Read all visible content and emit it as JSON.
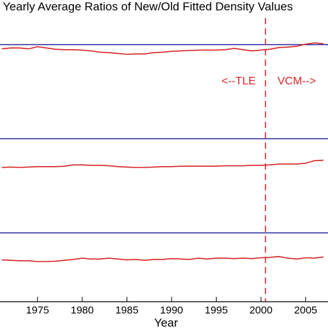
{
  "chart_data": {
    "type": "line",
    "title": "Yearly Average Ratios of New/Old Fitted Density Values",
    "xlabel": "Year",
    "xlim": [
      1970.8,
      2007.5
    ],
    "xticks": [
      1975,
      1980,
      1985,
      1990,
      1995,
      2000,
      2005
    ],
    "grid": false,
    "colors": {
      "series": "#d62728",
      "reference": "#2a2aa0",
      "divider": "#d62728"
    },
    "divider_year": 2000.5,
    "annotations": [
      {
        "text": "<--TLE",
        "x": 1997.5
      },
      {
        "text": "VCM-->",
        "x": 2004.0
      }
    ],
    "panels": [
      {
        "name": "panel-1",
        "ylim": [
          0.86,
          1.04
        ],
        "reference": 1.0,
        "series": {
          "x": [
            1971,
            1972,
            1973,
            1974,
            1975,
            1976,
            1977,
            1978,
            1979,
            1980,
            1981,
            1982,
            1983,
            1984,
            1985,
            1986,
            1987,
            1988,
            1989,
            1990,
            1991,
            1992,
            1993,
            1994,
            1995,
            1996,
            1997,
            1998,
            1999,
            2000,
            2001,
            2002,
            2003,
            2004,
            2005,
            2006,
            2007
          ],
          "values": [
            0.99,
            0.992,
            0.992,
            0.99,
            0.995,
            0.992,
            0.989,
            0.988,
            0.988,
            0.987,
            0.985,
            0.982,
            0.981,
            0.979,
            0.977,
            0.978,
            0.978,
            0.981,
            0.982,
            0.984,
            0.985,
            0.986,
            0.987,
            0.987,
            0.987,
            0.988,
            0.991,
            0.988,
            0.985,
            0.987,
            0.989,
            0.993,
            0.994,
            0.996,
            1.001,
            1.004,
            1.002
          ]
        }
      },
      {
        "name": "panel-2",
        "ylim": [
          0.86,
          1.04
        ],
        "reference": 1.0,
        "series": {
          "x": [
            1971,
            1972,
            1973,
            1974,
            1975,
            1976,
            1977,
            1978,
            1979,
            1980,
            1981,
            1982,
            1983,
            1984,
            1985,
            1986,
            1987,
            1988,
            1989,
            1990,
            1991,
            1992,
            1993,
            1994,
            1995,
            1996,
            1997,
            1998,
            1999,
            2000,
            2001,
            2002,
            2003,
            2004,
            2005,
            2006,
            2007
          ],
          "values": [
            0.932,
            0.933,
            0.932,
            0.933,
            0.934,
            0.934,
            0.934,
            0.935,
            0.938,
            0.938,
            0.937,
            0.937,
            0.936,
            0.934,
            0.933,
            0.932,
            0.932,
            0.933,
            0.934,
            0.934,
            0.935,
            0.935,
            0.935,
            0.935,
            0.935,
            0.936,
            0.936,
            0.936,
            0.937,
            0.937,
            0.938,
            0.94,
            0.94,
            0.94,
            0.942,
            0.948,
            0.949
          ]
        }
      },
      {
        "name": "panel-3",
        "ylim": [
          0.86,
          1.04
        ],
        "reference": 1.0,
        "series": {
          "x": [
            1971,
            1972,
            1973,
            1974,
            1975,
            1976,
            1977,
            1978,
            1979,
            1980,
            1981,
            1982,
            1983,
            1984,
            1985,
            1986,
            1987,
            1988,
            1989,
            1990,
            1991,
            1992,
            1993,
            1994,
            1995,
            1996,
            1997,
            1998,
            1999,
            2000,
            2001,
            2002,
            2003,
            2004,
            2005,
            2006,
            2007
          ],
          "values": [
            0.936,
            0.935,
            0.934,
            0.934,
            0.932,
            0.932,
            0.933,
            0.935,
            0.937,
            0.94,
            0.938,
            0.938,
            0.94,
            0.938,
            0.936,
            0.937,
            0.935,
            0.937,
            0.937,
            0.939,
            0.938,
            0.937,
            0.94,
            0.938,
            0.94,
            0.94,
            0.939,
            0.94,
            0.939,
            0.941,
            0.942,
            0.944,
            0.94,
            0.938,
            0.941,
            0.94,
            0.943
          ]
        }
      }
    ]
  }
}
